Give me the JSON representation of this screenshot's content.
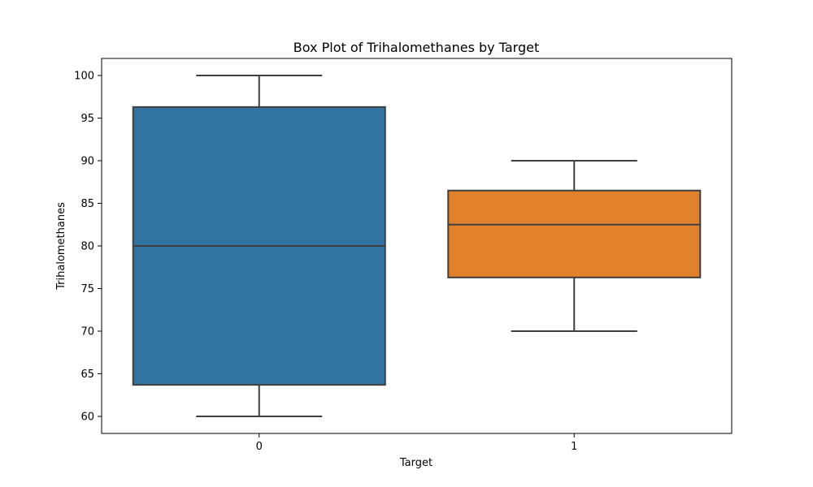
{
  "chart_data": {
    "type": "box",
    "title": "Box Plot of Trihalomethanes by Target",
    "xlabel": "Target",
    "ylabel": "Trihalomethanes",
    "categories": [
      "0",
      "1"
    ],
    "boxes": [
      {
        "category": "0",
        "whisker_low": 60,
        "q1": 63.7,
        "median": 80,
        "q3": 96.3,
        "whisker_high": 100,
        "color": "#3274a1"
      },
      {
        "category": "1",
        "whisker_low": 70,
        "q1": 76.3,
        "median": 82.5,
        "q3": 86.5,
        "whisker_high": 90,
        "color": "#e1812c"
      }
    ],
    "ylim": [
      58,
      102
    ],
    "yticks": [
      60,
      65,
      70,
      75,
      80,
      85,
      90,
      95,
      100
    ],
    "grid": false,
    "legend": "none"
  }
}
